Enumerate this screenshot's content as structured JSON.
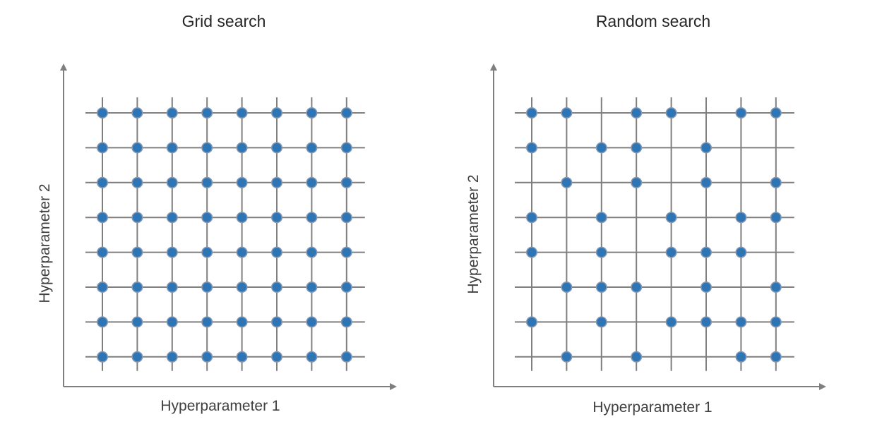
{
  "panels": [
    {
      "title": "Grid search",
      "x_label": "Hyperparameter 1",
      "y_label": "Hyperparameter 2",
      "grid": {
        "columns": 8,
        "rows": 8
      },
      "points": "all"
    },
    {
      "title": "Random search",
      "x_label": "Hyperparameter 1",
      "y_label": "Hyperparameter 2",
      "grid": {
        "columns": 8,
        "rows": 8
      },
      "points": [
        [
          0,
          7
        ],
        [
          1,
          7
        ],
        [
          3,
          7
        ],
        [
          4,
          7
        ],
        [
          6,
          7
        ],
        [
          7,
          7
        ],
        [
          0,
          6
        ],
        [
          2,
          6
        ],
        [
          3,
          6
        ],
        [
          5,
          6
        ],
        [
          1,
          5
        ],
        [
          3,
          5
        ],
        [
          5,
          5
        ],
        [
          7,
          5
        ],
        [
          0,
          4
        ],
        [
          2,
          4
        ],
        [
          4,
          4
        ],
        [
          6,
          4
        ],
        [
          7,
          4
        ],
        [
          0,
          3
        ],
        [
          2,
          3
        ],
        [
          4,
          3
        ],
        [
          5,
          3
        ],
        [
          6,
          3
        ],
        [
          1,
          2
        ],
        [
          2,
          2
        ],
        [
          3,
          2
        ],
        [
          5,
          2
        ],
        [
          7,
          2
        ],
        [
          0,
          1
        ],
        [
          2,
          1
        ],
        [
          4,
          1
        ],
        [
          5,
          1
        ],
        [
          6,
          1
        ],
        [
          7,
          1
        ],
        [
          1,
          0
        ],
        [
          3,
          0
        ],
        [
          6,
          0
        ],
        [
          7,
          0
        ]
      ]
    }
  ],
  "colors": {
    "point_fill": "#2e75b6",
    "point_stroke": "#8497b0",
    "grid_line": "#7f7f7f",
    "axis": "#7f7f7f",
    "text": "#262626"
  }
}
